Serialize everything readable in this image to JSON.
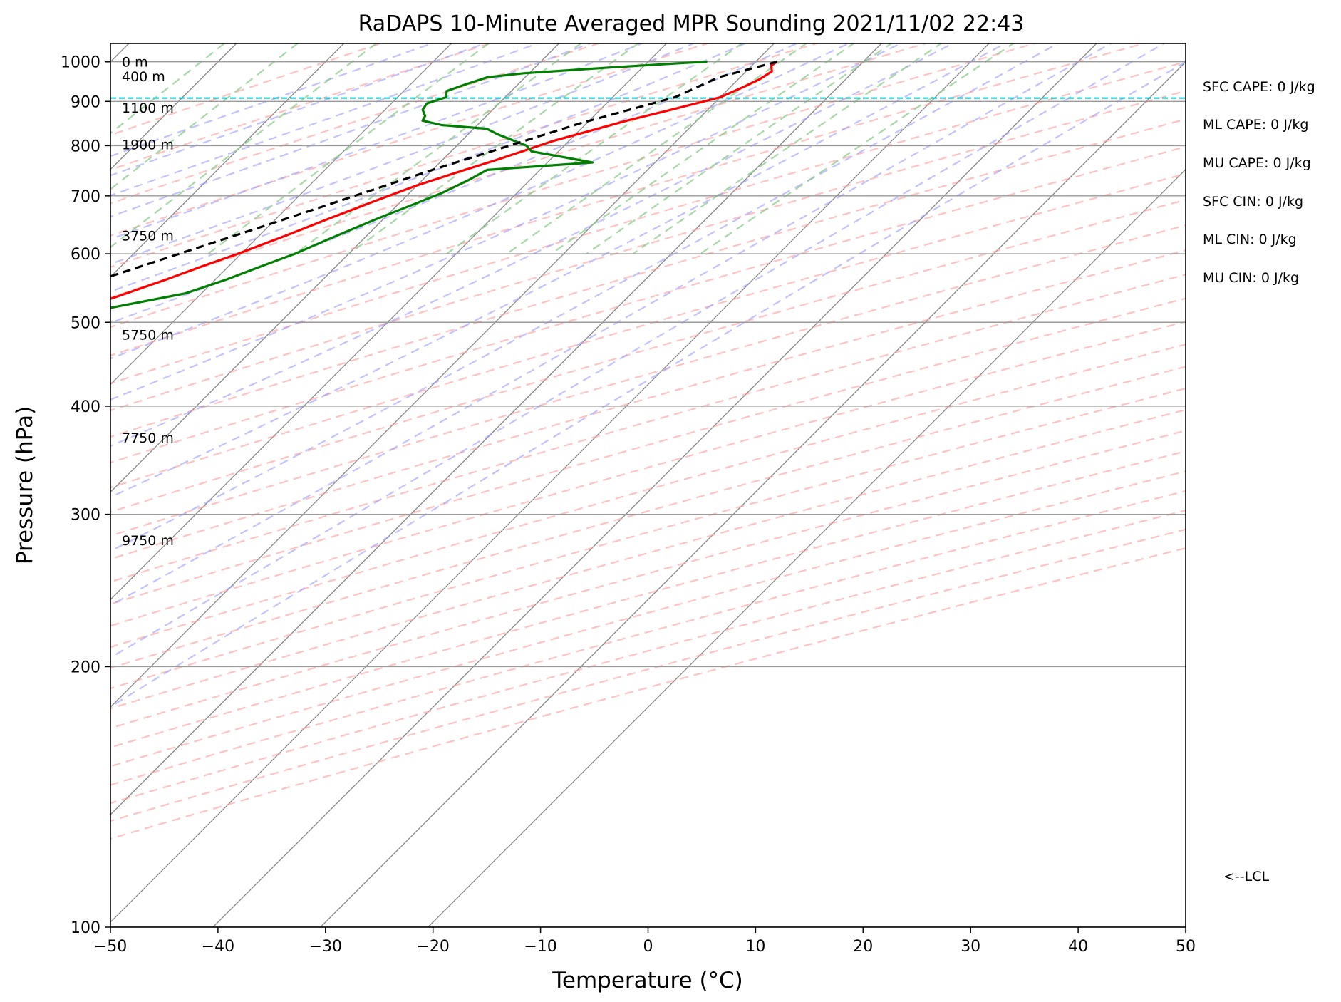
{
  "chart_data": {
    "type": "line",
    "title": "RaDAPS 10-Minute Averaged MPR Sounding 2021/11/02 22:43",
    "xlabel": "Temperature (°C)",
    "ylabel": "Pressure (hPa)",
    "xlim": [
      -50,
      50
    ],
    "ylim": [
      1050,
      100
    ],
    "y_scale": "log",
    "skew": "skew-T",
    "grid": true,
    "xticks": [
      -50,
      -40,
      -30,
      -20,
      -10,
      0,
      10,
      20,
      30,
      40,
      50
    ],
    "x_tick_labels": [
      "−50",
      "−40",
      "−30",
      "−20",
      "−10",
      "0",
      "10",
      "20",
      "30",
      "40",
      "50"
    ],
    "yticks": [
      100,
      200,
      300,
      400,
      500,
      600,
      700,
      800,
      900,
      1000
    ],
    "y_tick_labels": [
      "100",
      "200",
      "300",
      "400",
      "500",
      "600",
      "700",
      "800",
      "900",
      "1000"
    ],
    "series": [
      {
        "name": "",
        "role": "temperature",
        "color": "#ff0000",
        "points": [
          [
            12.0,
            1000
          ],
          [
            11.8,
            990
          ],
          [
            12.4,
            975
          ],
          [
            12.0,
            955
          ],
          [
            11.2,
            935
          ],
          [
            10.0,
            910
          ],
          [
            6.6,
            880
          ],
          [
            3.5,
            855
          ],
          [
            1.0,
            832
          ],
          [
            -1.5,
            810
          ],
          [
            -3.2,
            790
          ],
          [
            -5.0,
            770
          ],
          [
            -7.5,
            745
          ],
          [
            -10.0,
            720
          ],
          [
            -12.5,
            690
          ],
          [
            -15.0,
            660
          ],
          [
            -17.5,
            630
          ],
          [
            -20.3,
            600
          ],
          [
            -22.5,
            580
          ],
          [
            -24.6,
            560
          ],
          [
            -27.0,
            540
          ],
          [
            -29.5,
            520
          ],
          [
            -32.0,
            500
          ],
          [
            -34.0,
            485
          ],
          [
            -36.0,
            470
          ],
          [
            -39.0,
            450
          ],
          [
            -40.5,
            440
          ],
          [
            -43.0,
            420
          ],
          [
            -46.0,
            400
          ],
          [
            -48.0,
            385
          ],
          [
            -51.0,
            365
          ],
          [
            -54.0,
            345
          ],
          [
            -56.0,
            330
          ],
          [
            -57.5,
            320
          ],
          [
            -59.0,
            305
          ],
          [
            -60.5,
            290
          ],
          [
            -62.0,
            275
          ],
          [
            -64.0,
            262
          ]
        ]
      },
      {
        "name": "",
        "role": "dewpoint",
        "color": "#008000",
        "points": [
          [
            5.5,
            1000
          ],
          [
            3.5,
            997
          ],
          [
            -3.0,
            985
          ],
          [
            -10.5,
            970
          ],
          [
            -13.5,
            960
          ],
          [
            -15.0,
            940
          ],
          [
            -16.0,
            925
          ],
          [
            -15.5,
            910
          ],
          [
            -16.7,
            895
          ],
          [
            -16.5,
            880
          ],
          [
            -15.7,
            866
          ],
          [
            -15.5,
            855
          ],
          [
            -13.3,
            845
          ],
          [
            -8.8,
            837
          ],
          [
            -7.3,
            825
          ],
          [
            -3.5,
            800
          ],
          [
            -2.5,
            788
          ],
          [
            4.2,
            765
          ],
          [
            -4.9,
            750
          ],
          [
            -5.7,
            730
          ],
          [
            -7.0,
            705
          ],
          [
            -8.5,
            685
          ],
          [
            -10.5,
            660
          ],
          [
            -12.0,
            640
          ],
          [
            -13.5,
            620
          ],
          [
            -15.0,
            600
          ],
          [
            -17.0,
            580
          ],
          [
            -19.0,
            560
          ],
          [
            -21.5,
            540
          ],
          [
            -27.0,
            520
          ],
          [
            -38.0,
            500
          ],
          [
            -42.5,
            480
          ],
          [
            -49.0,
            460
          ],
          [
            -50.5,
            445
          ],
          [
            -58.5,
            415
          ],
          [
            -60.5,
            405
          ],
          [
            -62.5,
            395
          ],
          [
            -64.0,
            370
          ],
          [
            -72.0,
            350
          ],
          [
            -74.0,
            340
          ],
          [
            -79.0,
            335
          ],
          [
            -83.0,
            320
          ],
          [
            -84.0,
            310
          ],
          [
            -85.5,
            300
          ],
          [
            -83.0,
            285
          ],
          [
            -91.0,
            275
          ],
          [
            -92.0,
            268
          ],
          [
            -96.0,
            260
          ]
        ]
      },
      {
        "name": "",
        "role": "parcel",
        "color": "#000000",
        "points": [
          [
            12.0,
            1000
          ],
          [
            8.0,
            960
          ],
          [
            5.8,
            910
          ],
          [
            -0.5,
            850
          ],
          [
            -10.0,
            750
          ],
          [
            -20.0,
            650
          ],
          [
            -32.0,
            550
          ],
          [
            -48.0,
            450
          ],
          [
            -64.0,
            360
          ],
          [
            -80.0,
            295
          ],
          [
            -90.0,
            262
          ]
        ]
      }
    ],
    "height_labels": [
      {
        "text": "9750 m",
        "pressure": 280
      },
      {
        "text": "7750 m",
        "pressure": 368
      },
      {
        "text": "5750 m",
        "pressure": 484
      },
      {
        "text": "3750 m",
        "pressure": 630
      },
      {
        "text": "1900 m",
        "pressure": 803
      },
      {
        "text": "1100 m",
        "pressure": 885
      },
      {
        "text": "400 m",
        "pressure": 962
      },
      {
        "text": "0 m",
        "pressure": 1000
      }
    ],
    "lcl": {
      "pressure": 908,
      "label": "<--LCL",
      "color": "#00bfbf"
    },
    "indices": [
      {
        "label": "SFC CAPE: 0 J/kg"
      },
      {
        "label": "ML CAPE: 0 J/kg"
      },
      {
        "label": "MU CAPE: 0 J/kg"
      },
      {
        "label": "SFC CIN: 0 J/kg"
      },
      {
        "label": "ML CIN: 0 J/kg"
      },
      {
        "label": "MU CIN: 0 J/kg"
      }
    ],
    "reference_lines": {
      "isotherm_color": "#888888",
      "dry_adiabat_color": "#ff9999",
      "moist_adiabat_color": "#9999ff",
      "mixing_ratio_color": "#88cc88"
    }
  }
}
